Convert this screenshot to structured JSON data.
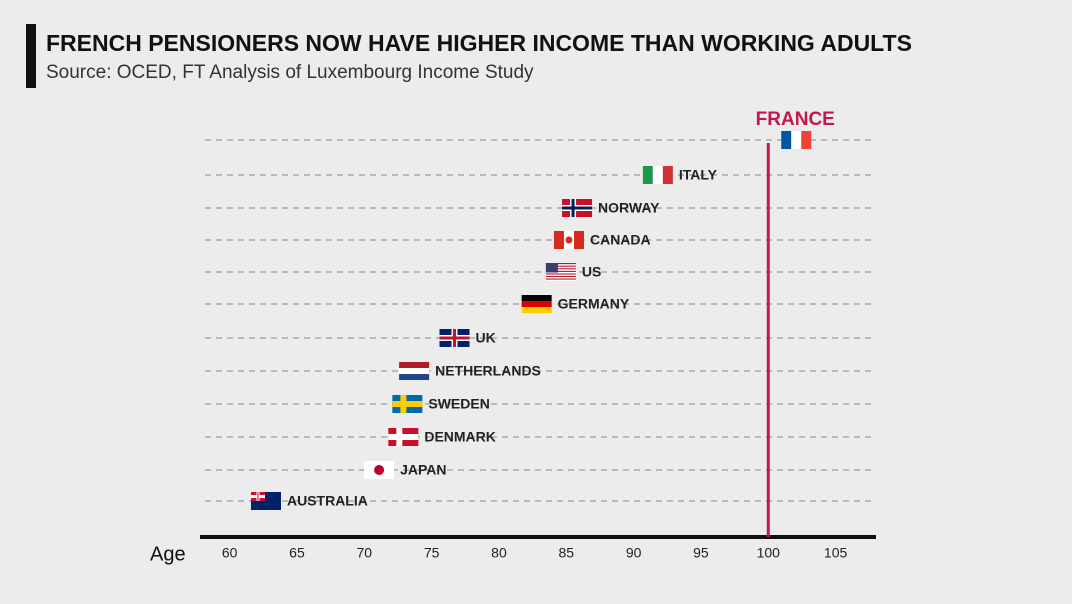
{
  "chart_data": {
    "type": "dot",
    "title": "FRENCH PENSIONERS NOW HAVE HIGHER INCOME THAN WORKING ADULTS",
    "subtitle": "Source: OCED, FT Analysis of Luxembourg Income Study",
    "x_label": "Age",
    "categories": [
      "ITALY",
      "NORWAY",
      "CANADA",
      "US",
      "GERMANY",
      "UK",
      "NETHERLANDS",
      "SWEDEN",
      "DENMARK",
      "JAPAN",
      "AUSTRALIA"
    ],
    "values": [
      91.8,
      85.8,
      85.2,
      84.6,
      82.8,
      76.7,
      73.7,
      73.2,
      72.9,
      71.1,
      62.7
    ],
    "reference": {
      "label": "FRANCE",
      "value": 100,
      "color": "#c2184b"
    },
    "xlim": [
      57.8,
      108
    ],
    "xticks": [
      60,
      65,
      70,
      75,
      80,
      85,
      90,
      95,
      100,
      105
    ]
  }
}
